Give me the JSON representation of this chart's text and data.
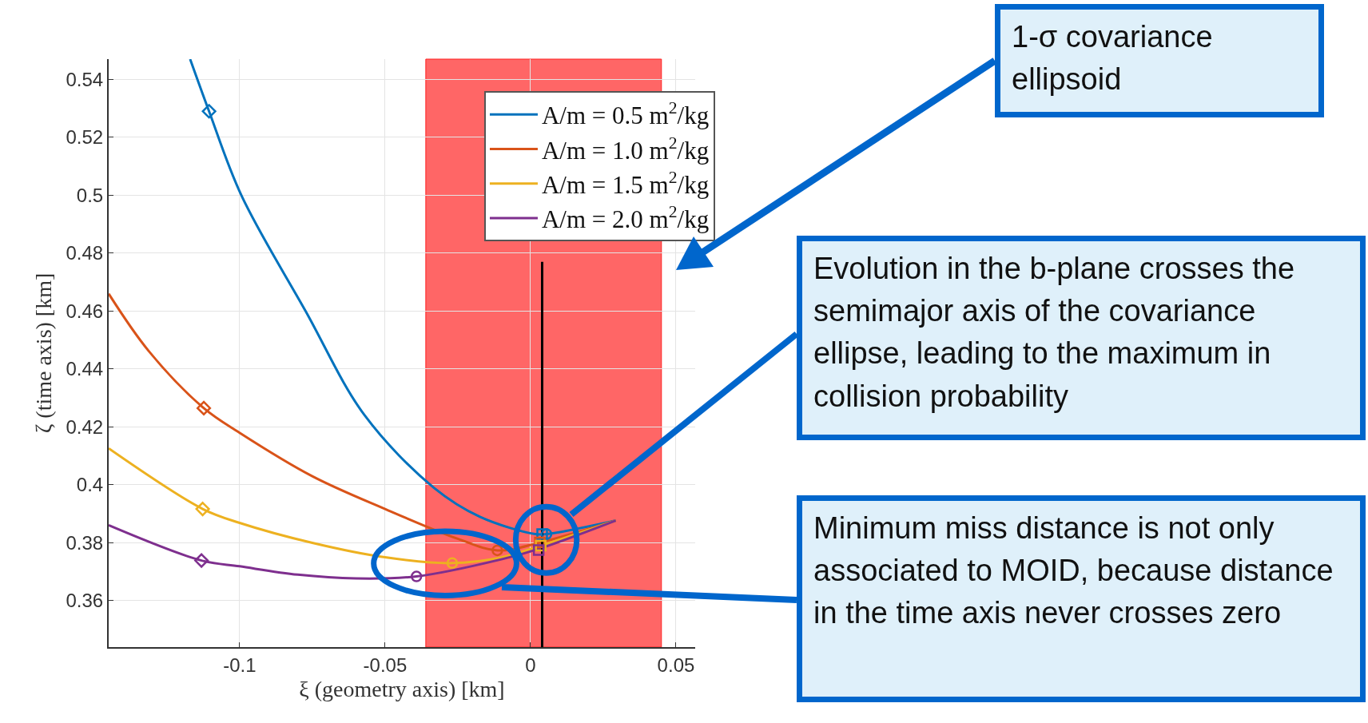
{
  "chart_data": {
    "type": "line",
    "xlabel": "ξ (geometry axis) [km]",
    "ylabel": "ζ (time axis) [km]",
    "xlim": [
      -0.145,
      0.0566
    ],
    "xticks": [
      -0.1,
      -0.05,
      0,
      0.05
    ],
    "ylim": [
      0.344,
      0.547
    ],
    "yticks": [
      0.36,
      0.38,
      0.4,
      0.42,
      0.44,
      0.46,
      0.48,
      0.5,
      0.52,
      0.54
    ],
    "grid": true,
    "legend": "top right",
    "marker": "none",
    "line_style": "solid",
    "bands": [
      {
        "axis": "x",
        "from": -0.036,
        "to": 0.045,
        "color": "#ff6666"
      }
    ],
    "series": [
      {
        "name": "A/m = 0.5 m$^{2}$/kg",
        "color": "#0072bd",
        "x": [
          -0.117,
          -0.1105,
          -0.0994,
          -0.0773,
          -0.057,
          -0.0332,
          -0.0174,
          0.0016,
          0.0055,
          0.0293
        ],
        "values": [
          0.547,
          0.529,
          0.5,
          0.46,
          0.424,
          0.399,
          0.389,
          0.383,
          0.383,
          0.3877
        ]
      },
      {
        "name": "A/m = 1.0 m$^{2}$/kg",
        "color": "#d95319",
        "x": [
          -0.145,
          -0.1313,
          -0.1123,
          -0.1,
          -0.075,
          -0.05,
          -0.025,
          -0.0114,
          0.0032,
          0.0293
        ],
        "values": [
          0.466,
          0.4463,
          0.4265,
          0.418,
          0.403,
          0.3917,
          0.3814,
          0.3774,
          0.3801,
          0.3877
        ]
      },
      {
        "name": "A/m = 1.5 m$^{2}$/kg",
        "color": "#edb120",
        "x": [
          -0.145,
          -0.1127,
          -0.1,
          -0.075,
          -0.05,
          -0.0269,
          -0.01,
          0.0035,
          0.0293
        ],
        "values": [
          0.4126,
          0.3917,
          0.3869,
          0.38,
          0.375,
          0.373,
          0.375,
          0.379,
          0.3877
        ]
      },
      {
        "name": "A/m = 2.0 m$^{2}$/kg",
        "color": "#7e2f8e",
        "x": [
          -0.145,
          -0.1131,
          -0.1,
          -0.08,
          -0.06,
          -0.0392,
          -0.01,
          0.0028,
          0.0293
        ],
        "values": [
          0.3861,
          0.3739,
          0.3719,
          0.369,
          0.3677,
          0.3684,
          0.3743,
          0.3779,
          0.3877
        ]
      },
      {
        "type": "line",
        "color": "#000000",
        "x": [
          0.004,
          0.004
        ],
        "values": [
          0.344,
          0.477
        ]
      },
      {
        "type": "scatter",
        "marker": "diamond",
        "colors": [
          "#0072bd",
          "#d95319",
          "#edb120",
          "#7e2f8e"
        ],
        "x": [
          -0.1105,
          -0.1123,
          -0.1127,
          -0.1131
        ],
        "values": [
          0.529,
          0.4265,
          0.3917,
          0.3739
        ]
      },
      {
        "type": "scatter",
        "marker": "circle",
        "colors": [
          "#0072bd",
          "#d95319",
          "#edb120",
          "#7e2f8e"
        ],
        "x": [
          0.0055,
          -0.0114,
          -0.0269,
          -0.0392
        ],
        "values": [
          0.383,
          0.3774,
          0.373,
          0.3684
        ]
      },
      {
        "type": "scatter",
        "marker": "square",
        "colors": [
          "#0072bd",
          "#d95319",
          "#edb120",
          "#7e2f8e"
        ],
        "x": [
          0.004,
          0.0032,
          0.0035,
          0.0028
        ],
        "values": [
          0.383,
          0.3801,
          0.379,
          0.3775
        ]
      }
    ],
    "annotations": [
      "1-σ covariance ellipsoid",
      "Evolution in the b-plane crosses the semimajor axis of the covariance ellipse, leading to the maximum in collision probability",
      "Minimum miss distance is not only associated to MOID, because distance in the time axis never crosses zero"
    ]
  }
}
